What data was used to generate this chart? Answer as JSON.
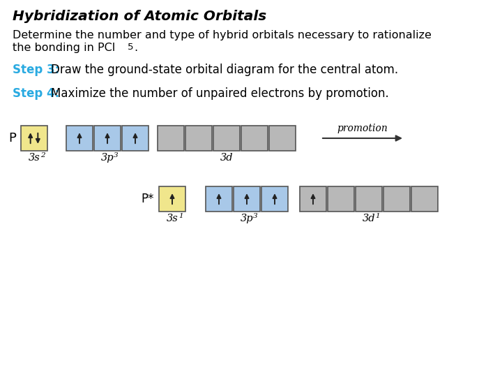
{
  "title": "Hybridization of Atomic Orbitals",
  "line1": "Determine the number and type of hybrid orbitals necessary to rationalize",
  "line2": "the bonding in PCl",
  "line2_sub": "5",
  "line2_end": ".",
  "step3_bold": "Step 3:",
  "step3_text": "  Draw the ground-state orbital diagram for the central atom.",
  "step4_bold": "Step 4:",
  "step4_text": "  Maximize the number of unpaired electrons by promotion.",
  "bg_color": "#ffffff",
  "step_color": "#29aae1",
  "title_color": "#000000",
  "text_color": "#000000",
  "box_yellow": "#f0e68c",
  "box_blue": "#a8c8e8",
  "box_gray": "#b8b8b8",
  "border_color": "#555555",
  "promotion_text": "promotion",
  "sub1_3s": "3s",
  "sub1_3s_sup": "2",
  "sub1_3p": "3p",
  "sub1_3p_sup": "3",
  "sub1_3d": "3d",
  "sub2_3s": "3s",
  "sub2_3s_sup": "1",
  "sub2_3p": "3p",
  "sub2_3p_sup": "3",
  "sub2_3d": "3d",
  "sub2_3d_sup": "1"
}
